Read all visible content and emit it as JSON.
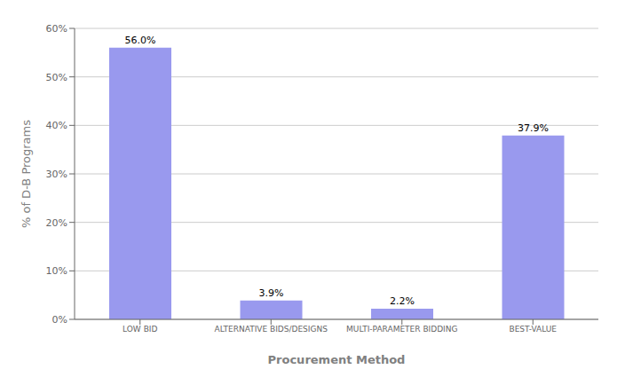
{
  "chart_data": {
    "type": "bar",
    "categories": [
      "LOW BID",
      "ALTERNATIVE BIDS/DESIGNS",
      "MULTI-PARAMETER BIDDING",
      "BEST-VALUE"
    ],
    "values": [
      56.0,
      3.9,
      2.2,
      37.9
    ],
    "value_labels": [
      "56.0%",
      "3.9%",
      "2.2%",
      "37.9%"
    ],
    "data_labels": true,
    "color": "#9999ee",
    "xlabel": "Procurement Method",
    "ylabel": "% of D-B Programs",
    "ylim": [
      0,
      60
    ],
    "yticks": [
      {
        "value": 0,
        "label": "0%"
      },
      {
        "value": 10,
        "label": "10%"
      },
      {
        "value": 20,
        "label": "20%"
      },
      {
        "value": 30,
        "label": "30%"
      },
      {
        "value": 40,
        "label": "40%"
      },
      {
        "value": 50,
        "label": "50%"
      },
      {
        "value": 60,
        "label": "60%"
      }
    ],
    "grid": true
  }
}
